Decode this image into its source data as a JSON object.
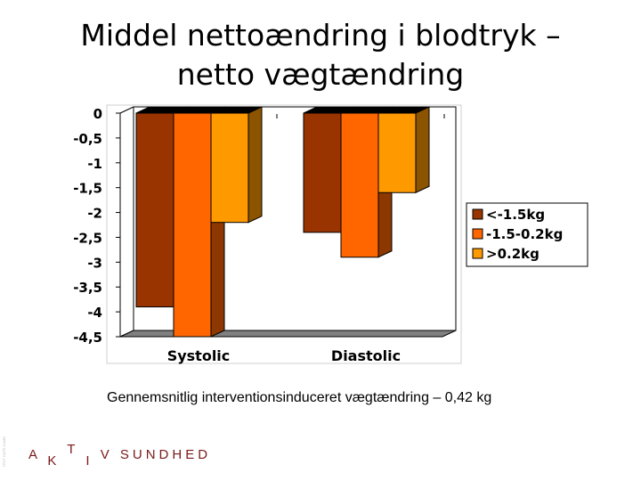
{
  "slide": {
    "title_line1": "Middel nettoændring i blodtryk –",
    "title_line2": "netto vægtændring",
    "caption": "Gennemsnitlig interventionsinduceret vægtændring – 0,42 kg",
    "logo": {
      "a": "A",
      "k": "K",
      "t": "T",
      "i": "I",
      "rest": "V SUNDHED"
    },
    "side_text": "TEXT DATE NAME"
  },
  "chart_data": {
    "type": "bar",
    "categories": [
      "Systolic",
      "Diastolic"
    ],
    "series": [
      {
        "name": "<-1.5kg",
        "values": [
          -3.9,
          -2.4
        ],
        "color": "#993300"
      },
      {
        "name": "-1.5-0.2kg",
        "values": [
          -4.5,
          -2.9
        ],
        "color": "#FF6600"
      },
      {
        "name": ">0.2kg",
        "values": [
          -2.2,
          -1.6
        ],
        "color": "#FF9900"
      }
    ],
    "ylim": [
      -4.5,
      0
    ],
    "yticks": [
      "0",
      "-0,5",
      "-1",
      "-1,5",
      "-2",
      "-2,5",
      "-3",
      "-3,5",
      "-4",
      "-4,5"
    ],
    "grid": false,
    "legend_position": "right",
    "style": "3d"
  }
}
